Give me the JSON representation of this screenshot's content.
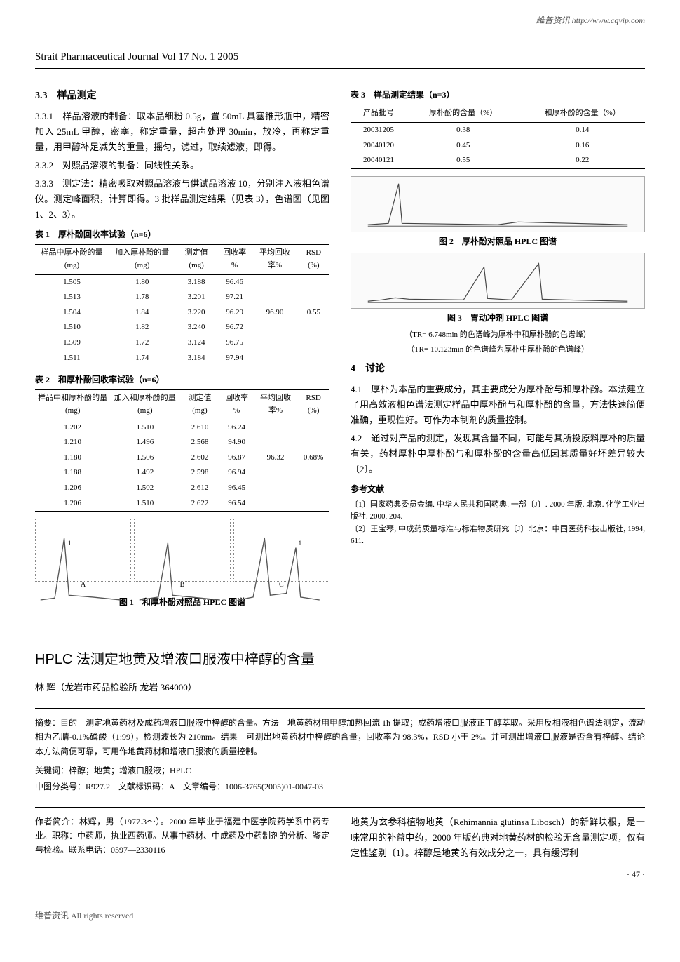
{
  "watermark_top": "维普资讯 http://www.cqvip.com",
  "journal_header": "Strait Pharmaceutical Journal Vol 17 No. 1 2005",
  "section_3_3": "3.3　样品测定",
  "para_3_3_1": "3.3.1　样品溶液的制备：取本品细粉 0.5g，置 50mL 具塞锥形瓶中，精密加入 25mL 甲醇，密塞，称定重量，超声处理 30min，放冷，再称定重量，用甲醇补足减失的重量，摇匀，滤过，取续滤液，即得。",
  "para_3_3_2": "3.3.2　对照品溶液的制备：同线性关系。",
  "para_3_3_3": "3.3.3　测定法：精密吸取对照品溶液与供试品溶液 10，分别注入液相色谱仪。测定峰面积，计算即得。3 批样品测定结果（见表 3），色谱图（见图 1、2、3）。",
  "table1_caption": "表 1　厚朴酚回收率试验（n=6）",
  "table1": {
    "columns": [
      "样品中厚朴酚的量 (mg)",
      "加入厚朴酚的量 (mg)",
      "测定值 (mg)",
      "回收率 %",
      "平均回收率%",
      "RSD (%)"
    ],
    "rows": [
      [
        "1.505",
        "1.80",
        "3.188",
        "96.46",
        "",
        ""
      ],
      [
        "1.513",
        "1.78",
        "3.201",
        "97.21",
        "",
        ""
      ],
      [
        "1.504",
        "1.84",
        "3.220",
        "96.29",
        "96.90",
        "0.55"
      ],
      [
        "1.510",
        "1.82",
        "3.240",
        "96.72",
        "",
        ""
      ],
      [
        "1.509",
        "1.72",
        "3.124",
        "96.75",
        "",
        ""
      ],
      [
        "1.511",
        "1.74",
        "3.184",
        "97.94",
        "",
        ""
      ]
    ]
  },
  "table2_caption": "表 2　和厚朴酚回收率试验（n=6）",
  "table2": {
    "columns": [
      "样品中和厚朴酚的量 (mg)",
      "加入和厚朴酚的量 (mg)",
      "测定值 (mg)",
      "回收率 %",
      "平均回收率%",
      "RSD (%)"
    ],
    "rows": [
      [
        "1.202",
        "1.510",
        "2.610",
        "96.24",
        "",
        ""
      ],
      [
        "1.210",
        "1.496",
        "2.568",
        "94.90",
        "",
        ""
      ],
      [
        "1.180",
        "1.506",
        "2.602",
        "96.87",
        "96.32",
        "0.68%"
      ],
      [
        "1.188",
        "1.492",
        "2.598",
        "96.94",
        "",
        ""
      ],
      [
        "1.206",
        "1.502",
        "2.612",
        "96.45",
        "",
        ""
      ],
      [
        "1.206",
        "1.510",
        "2.622",
        "96.54",
        "",
        ""
      ]
    ]
  },
  "fig1_caption": "图 1　和厚朴酚对照品 HPLC 图谱",
  "table3_caption": "表 3　样品测定结果（n=3）",
  "table3": {
    "columns": [
      "产品批号",
      "厚朴酚的含量（%）",
      "和厚朴酚的含量（%）"
    ],
    "rows": [
      [
        "20031205",
        "0.38",
        "0.14"
      ],
      [
        "20040120",
        "0.45",
        "0.16"
      ],
      [
        "20040121",
        "0.55",
        "0.22"
      ]
    ]
  },
  "fig2_caption": "图 2　厚朴酚对照品 HPLC 图谱",
  "fig3_caption": "图 3　胃动冲剂 HPLC 图谱",
  "fig3_note1": "（TR= 6.748min 的色谱峰为厚朴中和厚朴酚的色谱峰）",
  "fig3_note2": "（TR= 10.123min 的色谱峰为厚朴中厚朴酚的色谱峰）",
  "section_4": "4　讨论",
  "para_4_1": "4.1　厚朴为本品的重要成分，其主要成分为厚朴酚与和厚朴酚。本法建立了用高效液相色谱法测定样品中厚朴酚与和厚朴酚的含量，方法快速简便准确，重现性好。可作为本制剂的质量控制。",
  "para_4_2": "4.2　通过对产品的测定，发现其含量不同，可能与其所投原料厚朴的质量有关，药材厚朴中厚朴酚与和厚朴酚的含量高低因其质量好坏差异较大〔2〕。",
  "ref_heading": "参考文献",
  "ref1": "〔1〕国家药典委员会编. 中华人民共和国药典. 一部〔J〕. 2000 年版. 北京. 化学工业出版社. 2000, 204.",
  "ref2": "〔2〕王宝琴, 中成药质量标准与标准物质研究〔J〕北京：中国医药科技出版社, 1994, 611.",
  "article2_title": "HPLC 法测定地黄及增液口服液中梓醇的含量",
  "article2_author": "林 辉（龙岩市药品检验所 龙岩 364000）",
  "article2_abstract": "摘要：目的　测定地黄药材及成药增液口服液中梓醇的含量。方法　地黄药材用甲醇加热回流 1h 提取；成药增液口服液正丁醇萃取。采用反相液相色谱法测定，流动相为乙腈-0.1%磷酸（1:99），检测波长为 210nm。结果　可测出地黄药材中梓醇的含量，回收率为 98.3%，RSD 小于 2%。并可测出增液口服液是否含有梓醇。结论　本方法简便可靠，可用作地黄药材和增液口服液的质量控制。",
  "article2_keywords": "关键词：梓醇；地黄；增液口服液；HPLC",
  "article2_meta": "中图分类号：R927.2　文献标识码：A　文章编号：1006-3765(2005)01-0047-03",
  "article2_author_info": "作者简介：林辉，男（1977.3～）。2000 年毕业于福建中医学院药学系中药专业。职称：中药师，执业西药师。从事中药材、中成药及中药制剂的分析、鉴定与检验。联系电话：0597—2330116",
  "article2_body": "地黄为玄参科植物地黄（Rehimannia glutinsa Libosch）的新鲜块根，是一味常用的补益中药，2000 年版药典对地黄药材的检验无含量测定项，仅有定性鉴别〔1〕。梓醇是地黄的有效成分之一，具有缓泻利",
  "page_num": "· 47 ·",
  "watermark_bottom": "维普资讯 All rights reserved",
  "triple_labels": [
    "A",
    "B",
    "C"
  ],
  "peak_label": "1"
}
